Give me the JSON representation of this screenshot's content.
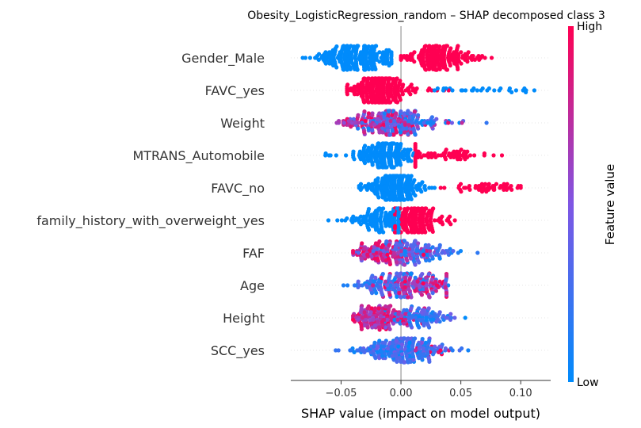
{
  "chart_data": {
    "type": "scatter",
    "subtype": "beeswarm",
    "title": "Obesity_LogisticRegression_random – SHAP decomposed class 3",
    "xlabel": "SHAP value (impact on model output)",
    "ylabel": "",
    "xlim": [
      -0.092,
      0.125
    ],
    "x_ticks": [
      -0.05,
      0.0,
      0.05,
      0.1
    ],
    "x_tick_labels": [
      "−0.05",
      "0.00",
      "0.05",
      "0.10"
    ],
    "features": [
      "Gender_Male",
      "FAVC_yes",
      "Weight",
      "MTRANS_Automobile",
      "FAVC_no",
      "family_history_with_overweight_yes",
      "FAF",
      "Age",
      "Height",
      "SCC_yes"
    ],
    "colorbar": {
      "label": "Feature value",
      "high_label": "High",
      "low_label": "Low",
      "low_color": "#008bfb",
      "high_color": "#ff0052"
    },
    "zero_line": true,
    "grid": false,
    "rows": [
      {
        "feature": "Gender_Male",
        "kind": "binary",
        "low": {
          "center": -0.036,
          "spread": 0.017,
          "min": -0.082,
          "max": -0.008,
          "n": 230
        },
        "high": {
          "center": 0.031,
          "spread": 0.014,
          "min": 0.0,
          "max": 0.083,
          "n": 200
        }
      },
      {
        "feature": "FAVC_yes",
        "kind": "binary",
        "low": {
          "center": 0.075,
          "spread": 0.022,
          "min": -0.075,
          "max": 0.12,
          "n": 30
        },
        "high": {
          "center": -0.018,
          "spread": 0.013,
          "min": -0.045,
          "max": 0.05,
          "n": 260
        }
      },
      {
        "feature": "Weight",
        "kind": "continuous",
        "low": {
          "center": -0.002,
          "spread": 0.016,
          "min": -0.045,
          "max": 0.09,
          "n": 130
        },
        "high": {
          "center": -0.018,
          "spread": 0.018,
          "min": -0.055,
          "max": 0.092,
          "n": 130
        }
      },
      {
        "feature": "MTRANS_Automobile",
        "kind": "binary",
        "low": {
          "center": -0.012,
          "spread": 0.011,
          "min": -0.068,
          "max": 0.012,
          "n": 200
        },
        "high": {
          "center": 0.035,
          "spread": 0.022,
          "min": 0.012,
          "max": 0.095,
          "n": 70
        }
      },
      {
        "feature": "FAVC_no",
        "kind": "binary",
        "low": {
          "center": -0.005,
          "spread": 0.011,
          "min": -0.035,
          "max": 0.03,
          "n": 220
        },
        "high": {
          "center": 0.07,
          "spread": 0.016,
          "min": 0.025,
          "max": 0.1,
          "n": 55
        }
      },
      {
        "feature": "family_history_with_overweight_yes",
        "kind": "binary",
        "low": {
          "center": -0.015,
          "spread": 0.013,
          "min": -0.073,
          "max": -0.002,
          "n": 150
        },
        "high": {
          "center": 0.01,
          "spread": 0.012,
          "min": -0.005,
          "max": 0.045,
          "n": 180
        }
      },
      {
        "feature": "FAF",
        "kind": "continuous",
        "low": {
          "center": 0.012,
          "spread": 0.016,
          "min": -0.04,
          "max": 0.065,
          "n": 120
        },
        "high": {
          "center": -0.012,
          "spread": 0.014,
          "min": -0.04,
          "max": 0.04,
          "n": 120
        }
      },
      {
        "feature": "Age",
        "kind": "continuous",
        "low": {
          "center": -0.008,
          "spread": 0.016,
          "min": -0.048,
          "max": 0.04,
          "n": 130
        },
        "high": {
          "center": 0.015,
          "spread": 0.015,
          "min": -0.03,
          "max": 0.038,
          "n": 110
        }
      },
      {
        "feature": "Height",
        "kind": "continuous",
        "low": {
          "center": 0.015,
          "spread": 0.015,
          "min": -0.02,
          "max": 0.06,
          "n": 100
        },
        "high": {
          "center": -0.018,
          "spread": 0.015,
          "min": -0.04,
          "max": 0.045,
          "n": 140
        }
      },
      {
        "feature": "SCC_yes",
        "kind": "continuous",
        "low": {
          "center": 0.0,
          "spread": 0.016,
          "min": -0.06,
          "max": 0.06,
          "n": 230
        },
        "high": {
          "center": 0.02,
          "spread": 0.01,
          "min": 0.0,
          "max": 0.04,
          "n": 12
        }
      }
    ]
  }
}
